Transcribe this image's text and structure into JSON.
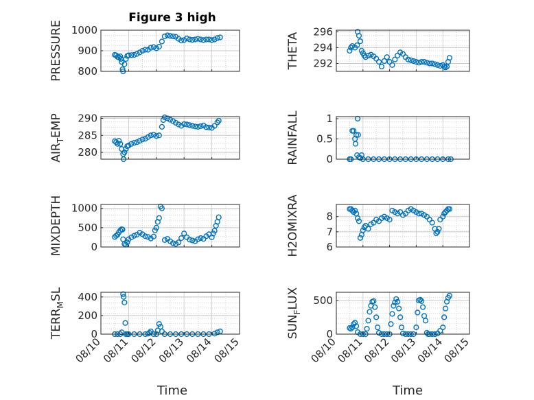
{
  "figure_title": "Figure 3 high",
  "colors": {
    "marker": "#0072BD",
    "axis": "#262626",
    "grid": "#c8c8c8"
  },
  "xaxis": {
    "label": "Time",
    "ticks": [
      "08/10",
      "08/11",
      "08/12",
      "08/13",
      "08/14",
      "08/15"
    ]
  },
  "chart_data": [
    {
      "type": "scatter",
      "title": "Figure 3 high",
      "ylabel": "PRESSURE",
      "xlim": [
        "08/10",
        "08/15"
      ],
      "ylim": [
        800,
        1000
      ],
      "yticks": [
        "800",
        "900",
        "1000"
      ],
      "grid": true,
      "x": [
        10.5,
        10.55,
        10.6,
        10.65,
        10.7,
        10.72,
        10.75,
        10.78,
        10.8,
        10.85,
        10.9,
        10.95,
        11.0,
        11.1,
        11.2,
        11.3,
        11.4,
        11.5,
        11.6,
        11.7,
        11.8,
        11.9,
        12.0,
        12.1,
        12.2,
        12.3,
        12.4,
        12.5,
        12.6,
        12.7,
        12.8,
        12.9,
        13.0,
        13.1,
        13.2,
        13.3,
        13.4,
        13.5,
        13.6,
        13.7,
        13.8,
        13.9,
        14.0,
        14.1,
        14.2,
        14.3
      ],
      "y": [
        880,
        878,
        870,
        868,
        873,
        860,
        845,
        810,
        800,
        835,
        860,
        875,
        878,
        879,
        880,
        885,
        892,
        900,
        905,
        905,
        915,
        918,
        912,
        920,
        945,
        970,
        975,
        972,
        970,
        968,
        958,
        950,
        952,
        960,
        955,
        953,
        955,
        958,
        955,
        952,
        955,
        955,
        952,
        955,
        962,
        965
      ]
    },
    {
      "type": "scatter",
      "ylabel": "THETA",
      "xlim": [
        "08/10",
        "08/15"
      ],
      "ylim": [
        291,
        296.2
      ],
      "yticks": [
        "292",
        "294",
        "296"
      ],
      "grid": true,
      "x": [
        10.5,
        10.55,
        10.6,
        10.7,
        10.78,
        10.8,
        10.85,
        10.9,
        10.95,
        11.0,
        11.05,
        11.1,
        11.2,
        11.3,
        11.4,
        11.5,
        11.6,
        11.7,
        11.8,
        11.9,
        12.0,
        12.1,
        12.2,
        12.3,
        12.4,
        12.5,
        12.6,
        12.7,
        12.8,
        12.9,
        13.0,
        13.1,
        13.2,
        13.3,
        13.4,
        13.5,
        13.6,
        13.7,
        13.8,
        13.9,
        14.0,
        14.05,
        14.1,
        14.15,
        14.2,
        14.25
      ],
      "y": [
        293.6,
        294.0,
        294.2,
        294.0,
        294.3,
        296.0,
        295.5,
        294.8,
        293.6,
        293.3,
        293.0,
        292.8,
        293.0,
        293.1,
        292.9,
        292.6,
        292.2,
        291.6,
        292.3,
        292.8,
        292.2,
        291.8,
        292.5,
        293.0,
        293.4,
        293.2,
        292.8,
        292.5,
        292.4,
        292.3,
        292.2,
        292.1,
        292.2,
        292.2,
        292.1,
        292.0,
        292.0,
        291.9,
        291.8,
        291.7,
        291.8,
        291.6,
        291.5,
        291.6,
        292.2,
        292.7
      ]
    },
    {
      "type": "scatter",
      "ylabel": "AIR_TEMP",
      "ylabel_parts": [
        "AIR",
        "T",
        "EMP"
      ],
      "xlim": [
        "08/10",
        "08/15"
      ],
      "ylim": [
        278,
        290.5
      ],
      "yticks": [
        "280",
        "285",
        "290"
      ],
      "grid": true,
      "x": [
        10.5,
        10.55,
        10.6,
        10.65,
        10.7,
        10.75,
        10.8,
        10.82,
        10.85,
        10.9,
        10.95,
        11.0,
        11.1,
        11.2,
        11.3,
        11.4,
        11.5,
        11.6,
        11.7,
        11.8,
        11.9,
        12.0,
        12.1,
        12.2,
        12.25,
        12.3,
        12.4,
        12.5,
        12.6,
        12.7,
        12.8,
        12.9,
        13.0,
        13.1,
        13.2,
        13.3,
        13.4,
        13.5,
        13.6,
        13.7,
        13.8,
        13.9,
        14.0,
        14.1,
        14.2,
        14.25
      ],
      "y": [
        283.3,
        283.0,
        282.5,
        283.4,
        282.5,
        281.0,
        279.5,
        278.0,
        280.0,
        281.0,
        281.8,
        282.0,
        282.5,
        282.8,
        283.0,
        283.4,
        283.8,
        284.0,
        284.5,
        285.0,
        285.2,
        284.8,
        285.0,
        287.5,
        289.5,
        290.3,
        290.0,
        289.6,
        289.2,
        288.7,
        288.2,
        287.8,
        288.3,
        288.2,
        288.0,
        287.8,
        287.6,
        287.5,
        287.7,
        287.9,
        287.4,
        287.3,
        287.2,
        287.8,
        288.8,
        289.3
      ]
    },
    {
      "type": "scatter",
      "ylabel": "RAINFALL",
      "xlim": [
        "08/10",
        "08/15"
      ],
      "ylim": [
        0,
        1.05
      ],
      "yticks": [
        "0",
        "0.5",
        "1"
      ],
      "grid": true,
      "x": [
        10.5,
        10.55,
        10.6,
        10.65,
        10.7,
        10.72,
        10.75,
        10.78,
        10.8,
        10.82,
        10.85,
        10.9,
        10.95,
        11.0,
        11.2,
        11.4,
        11.6,
        11.8,
        12.0,
        12.2,
        12.4,
        12.6,
        12.8,
        13.0,
        13.2,
        13.4,
        13.6,
        13.8,
        14.0,
        14.2,
        14.3
      ],
      "y": [
        0.0,
        0.0,
        0.7,
        0.7,
        0.5,
        0.38,
        0.6,
        0.1,
        1.0,
        0.6,
        0.05,
        0.03,
        0.1,
        0.0,
        0.0,
        0.0,
        0.0,
        0.0,
        0.0,
        0.0,
        0.0,
        0.0,
        0.0,
        0.0,
        0.0,
        0.0,
        0.0,
        0.0,
        0.0,
        0.0,
        0.0
      ]
    },
    {
      "type": "scatter",
      "ylabel": "MIXDEPTH",
      "xlim": [
        "08/10",
        "08/15"
      ],
      "ylim": [
        0,
        1100
      ],
      "yticks": [
        "0",
        "500",
        "1000"
      ],
      "grid": true,
      "x": [
        10.5,
        10.55,
        10.6,
        10.65,
        10.7,
        10.75,
        10.78,
        10.8,
        10.85,
        10.9,
        10.95,
        11.0,
        11.1,
        11.2,
        11.3,
        11.4,
        11.5,
        11.6,
        11.7,
        11.8,
        11.9,
        11.95,
        12.0,
        12.05,
        12.1,
        12.15,
        12.2,
        12.3,
        12.4,
        12.5,
        12.6,
        12.7,
        12.8,
        12.9,
        13.0,
        13.1,
        13.2,
        13.3,
        13.4,
        13.5,
        13.6,
        13.7,
        13.8,
        13.9,
        14.0,
        14.05,
        14.1,
        14.15,
        14.2,
        14.25
      ],
      "y": [
        260,
        290,
        320,
        380,
        430,
        460,
        450,
        200,
        80,
        60,
        120,
        200,
        250,
        290,
        320,
        370,
        330,
        280,
        260,
        220,
        270,
        430,
        500,
        650,
        750,
        1050,
        1000,
        180,
        210,
        150,
        100,
        80,
        120,
        230,
        350,
        250,
        190,
        170,
        150,
        200,
        230,
        210,
        280,
        330,
        250,
        350,
        420,
        550,
        650,
        770
      ]
    },
    {
      "type": "scatter",
      "ylabel": "H2OMIXRA",
      "xlim": [
        "08/10",
        "08/15"
      ],
      "ylim": [
        6,
        8.8
      ],
      "yticks": [
        "6",
        "7",
        "8"
      ],
      "grid": true,
      "x": [
        10.5,
        10.55,
        10.6,
        10.65,
        10.7,
        10.75,
        10.8,
        10.85,
        10.9,
        10.95,
        11.0,
        11.05,
        11.1,
        11.2,
        11.3,
        11.4,
        11.5,
        11.6,
        11.7,
        11.8,
        11.9,
        12.0,
        12.1,
        12.2,
        12.3,
        12.4,
        12.5,
        12.6,
        12.7,
        12.8,
        12.9,
        13.0,
        13.1,
        13.2,
        13.3,
        13.4,
        13.5,
        13.6,
        13.7,
        13.75,
        13.8,
        13.85,
        13.9,
        14.0,
        14.05,
        14.1,
        14.15,
        14.2,
        14.25
      ],
      "y": [
        8.5,
        8.5,
        8.4,
        8.3,
        8.4,
        8.2,
        7.9,
        7.7,
        6.6,
        6.8,
        7.1,
        7.3,
        7.4,
        7.2,
        7.5,
        7.6,
        7.8,
        7.7,
        7.9,
        8.0,
        7.9,
        7.8,
        8.4,
        8.3,
        8.2,
        8.3,
        8.1,
        8.2,
        8.4,
        8.5,
        8.4,
        8.3,
        8.2,
        8.2,
        8.1,
        8.0,
        7.8,
        7.6,
        7.2,
        6.9,
        7.0,
        7.2,
        7.8,
        8.0,
        8.2,
        8.3,
        8.4,
        8.5,
        8.5
      ]
    },
    {
      "type": "scatter",
      "ylabel": "TERR_MSL",
      "ylabel_parts": [
        "TERR",
        "M",
        "SL"
      ],
      "xlim": [
        "08/10",
        "08/15"
      ],
      "ylim": [
        0,
        450
      ],
      "yticks": [
        "0",
        "200",
        "400"
      ],
      "grid": true,
      "x": [
        10.5,
        10.6,
        10.7,
        10.75,
        10.8,
        10.82,
        10.85,
        10.88,
        10.9,
        10.95,
        11.0,
        11.2,
        11.4,
        11.6,
        11.7,
        11.75,
        11.8,
        11.9,
        12.0,
        12.05,
        12.1,
        12.15,
        12.2,
        12.3,
        12.5,
        12.7,
        12.9,
        13.1,
        13.3,
        13.5,
        13.7,
        13.9,
        14.1,
        14.2,
        14.3
      ],
      "y": [
        0,
        0,
        0,
        20,
        430,
        400,
        340,
        120,
        0,
        0,
        0,
        0,
        0,
        0,
        5,
        15,
        30,
        0,
        0,
        40,
        110,
        80,
        30,
        0,
        0,
        0,
        0,
        0,
        0,
        0,
        0,
        0,
        5,
        20,
        30
      ]
    },
    {
      "type": "scatter",
      "ylabel": "SUN_FLUX",
      "ylabel_parts": [
        "SUN",
        "F",
        "LUX"
      ],
      "xlim": [
        "08/10",
        "08/15"
      ],
      "ylim": [
        0,
        620
      ],
      "yticks": [
        "0",
        "500"
      ],
      "grid": true,
      "x": [
        10.5,
        10.55,
        10.6,
        10.65,
        10.7,
        10.75,
        10.8,
        10.9,
        11.0,
        11.1,
        11.15,
        11.2,
        11.25,
        11.3,
        11.35,
        11.4,
        11.45,
        11.5,
        11.55,
        11.6,
        11.7,
        11.8,
        11.9,
        12.0,
        12.05,
        12.1,
        12.15,
        12.2,
        12.25,
        12.3,
        12.35,
        12.4,
        12.45,
        12.5,
        12.6,
        12.7,
        12.8,
        12.9,
        13.0,
        13.05,
        13.1,
        13.15,
        13.2,
        13.25,
        13.3,
        13.35,
        13.4,
        13.45,
        13.5,
        13.6,
        13.7,
        13.8,
        13.9,
        14.0,
        14.05,
        14.1,
        14.15,
        14.2,
        14.25
      ],
      "y": [
        90,
        80,
        100,
        150,
        170,
        120,
        30,
        0,
        0,
        0,
        80,
        200,
        330,
        420,
        480,
        490,
        400,
        250,
        100,
        20,
        0,
        0,
        0,
        0,
        150,
        300,
        420,
        470,
        520,
        480,
        380,
        250,
        100,
        10,
        0,
        0,
        0,
        0,
        100,
        320,
        500,
        510,
        490,
        400,
        270,
        200,
        20,
        0,
        0,
        0,
        0,
        10,
        50,
        100,
        250,
        380,
        480,
        540,
        570
      ]
    }
  ]
}
